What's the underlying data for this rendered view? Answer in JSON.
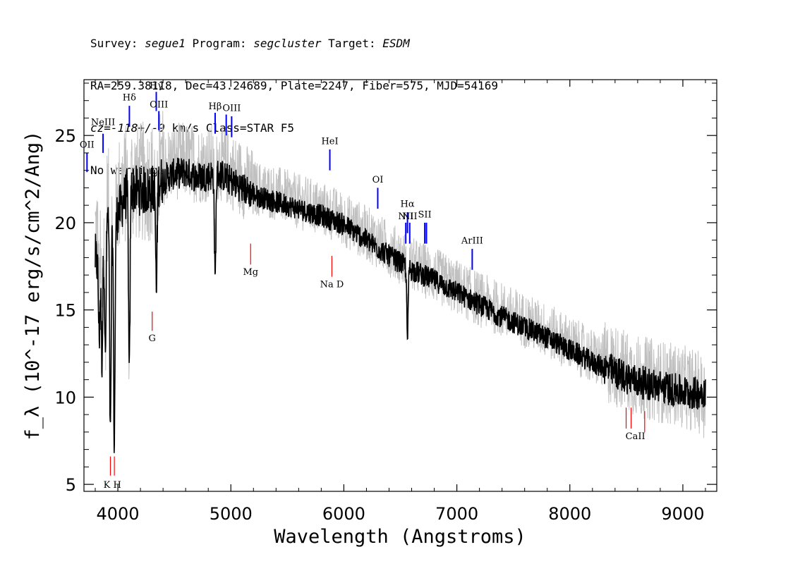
{
  "header": {
    "line1": {
      "survey_label": "Survey: ",
      "survey": "segue1",
      "program_label": " Program: ",
      "program": "segcluster",
      "target_label": " Target: ",
      "target": "ESDM"
    },
    "line2": "RA=259.38118, Dec=43.24689, Plate=2247, Fiber=575, MJD=54169",
    "line3": {
      "cz": "cz=-118+/-9",
      "rest": " km/s Class=STAR F5"
    },
    "line4": "No warnings."
  },
  "chart_data": {
    "type": "line",
    "xlabel": "Wavelength (Angstroms)",
    "ylabel": "f_λ (10^-17 erg/s/cm^2/Ang)",
    "xlim": [
      3700,
      9300
    ],
    "ylim": [
      4.6,
      28.2
    ],
    "xticks": [
      4000,
      5000,
      6000,
      7000,
      8000,
      9000
    ],
    "yticks": [
      5,
      10,
      15,
      20,
      25
    ],
    "series": [
      {
        "style": "gray-noise",
        "color": "#c0c0c0",
        "x": [
          3800,
          3850,
          3900,
          3950,
          4000,
          4100,
          4200,
          4300,
          4400,
          4500,
          4600,
          4700,
          4800,
          4900,
          5000,
          5100,
          5200,
          5400,
          5600,
          5800,
          6000,
          6200,
          6400,
          6600,
          6800,
          7000,
          7200,
          7400,
          7600,
          7800,
          8000,
          8200,
          8400,
          8600,
          8800,
          9000,
          9100,
          9200
        ],
        "y": [
          19.5,
          18.5,
          21.5,
          20.5,
          21.5,
          22.5,
          22.3,
          22.4,
          23.2,
          23.5,
          23.6,
          23.3,
          23.4,
          23.5,
          23.0,
          22.5,
          22.0,
          21.7,
          21.2,
          20.8,
          20.2,
          19.4,
          18.5,
          17.6,
          17.0,
          16.3,
          15.6,
          15.0,
          14.4,
          13.8,
          13.1,
          12.3,
          11.8,
          11.2,
          10.9,
          10.6,
          10.4,
          10.0
        ]
      },
      {
        "style": "spectrum",
        "color": "#000000",
        "x": [
          3800,
          3850,
          3900,
          3950,
          4000,
          4100,
          4200,
          4300,
          4400,
          4500,
          4600,
          4700,
          4800,
          4900,
          5000,
          5100,
          5200,
          5400,
          5600,
          5800,
          6000,
          6200,
          6400,
          6600,
          6800,
          7000,
          7200,
          7400,
          7600,
          7800,
          8000,
          8200,
          8400,
          8600,
          8800,
          9000,
          9100,
          9200
        ],
        "y": [
          18.0,
          17.0,
          20.5,
          19.5,
          20.5,
          22.0,
          21.8,
          21.9,
          22.5,
          22.8,
          22.9,
          22.6,
          22.7,
          22.8,
          22.4,
          22.0,
          21.6,
          21.2,
          20.8,
          20.4,
          19.9,
          19.0,
          18.1,
          17.3,
          16.7,
          16.0,
          15.3,
          14.6,
          14.0,
          13.4,
          12.7,
          12.0,
          11.4,
          10.9,
          10.6,
          10.3,
          10.2,
          10.4
        ]
      }
    ],
    "absorption_features": [
      {
        "x": 3934,
        "depth": 7.4
      },
      {
        "x": 3969,
        "depth": 7.3
      },
      {
        "x": 4101,
        "depth": 10.9
      },
      {
        "x": 4341,
        "depth": 16.0
      },
      {
        "x": 4861,
        "depth": 16.7
      },
      {
        "x": 6563,
        "depth": 13.4
      },
      {
        "x": 3860,
        "depth": 12.3
      },
      {
        "x": 3890,
        "depth": 12.0
      },
      {
        "x": 3835,
        "depth": 13.5
      }
    ],
    "emission_lines": [
      {
        "label": "OII",
        "x": 3727,
        "y0": 22.9,
        "y1": 24.0,
        "label_y": 24.3
      },
      {
        "label": "NeIII",
        "x": 3869,
        "y0": 24.0,
        "y1": 25.1,
        "label_y": 25.6
      },
      {
        "label": "Hδ",
        "x": 4102,
        "y0": 25.5,
        "y1": 26.7,
        "label_y": 27.0
      },
      {
        "label": "Hγ",
        "x": 4340,
        "y0": 26.4,
        "y1": 27.5,
        "label_y": 27.7
      },
      {
        "label": "OIII",
        "x": 4363,
        "y0": 25.3,
        "y1": 26.4,
        "label_y": 26.6
      },
      {
        "label": "Hβ",
        "x": 4861,
        "y0": 25.1,
        "y1": 26.3,
        "label_y": 26.5
      },
      {
        "label": "OIII",
        "x": 4959,
        "y0": 25.0,
        "y1": 26.2,
        "label_y": 0
      },
      {
        "label": "OIII",
        "x": 5007,
        "y0": 24.9,
        "y1": 26.1,
        "label_y": 26.4
      },
      {
        "label": "HeI",
        "x": 5876,
        "y0": 23.0,
        "y1": 24.2,
        "label_y": 24.5
      },
      {
        "label": "OI",
        "x": 6300,
        "y0": 20.8,
        "y1": 22.0,
        "label_y": 22.3
      },
      {
        "label": "NII",
        "x": 6548,
        "y0": 18.8,
        "y1": 20.0,
        "label_y": 20.2
      },
      {
        "label": "Hα",
        "x": 6563,
        "y0": 19.4,
        "y1": 20.6,
        "label_y": 20.9
      },
      {
        "label": "NII",
        "x": 6583,
        "y0": 18.8,
        "y1": 20.0,
        "label_y": 20.2
      },
      {
        "label": "SII",
        "x": 6716,
        "y0": 18.8,
        "y1": 20.0,
        "label_y": 20.3
      },
      {
        "label": "SII",
        "x": 6731,
        "y0": 18.8,
        "y1": 20.0,
        "label_y": 0
      },
      {
        "label": "ArIII",
        "x": 7136,
        "y0": 17.3,
        "y1": 18.5,
        "label_y": 18.8
      }
    ],
    "absorption_lines": [
      {
        "label": "K",
        "x": 3934,
        "y0": 5.5,
        "y1": 6.6
      },
      {
        "label": "H",
        "x": 3969,
        "y0": 5.5,
        "y1": 6.6
      },
      {
        "label": "G",
        "x": 4304,
        "y0": 13.8,
        "y1": 14.9
      },
      {
        "label": "Mg",
        "x": 5175,
        "y0": 17.6,
        "y1": 18.8
      },
      {
        "label": "Na D",
        "x": 5894,
        "y0": 16.9,
        "y1": 18.1
      },
      {
        "label": "CaII",
        "x": 8498,
        "y0": 8.2,
        "y1": 9.4
      },
      {
        "label": "CaII",
        "x": 8542,
        "y0": 8.2,
        "y1": 9.4
      },
      {
        "label": "CaII",
        "x": 8662,
        "y0": 8.0,
        "y1": 9.2
      }
    ],
    "absorption_label_positions": [
      {
        "label": "K H",
        "x": 3951,
        "y": 4.8
      },
      {
        "label": "G",
        "x": 4304,
        "y": 13.2
      },
      {
        "label": "Mg",
        "x": 5175,
        "y": 17.0
      },
      {
        "label": "Na D",
        "x": 5894,
        "y": 16.3
      },
      {
        "label": "CaII",
        "x": 8580,
        "y": 7.6
      }
    ]
  }
}
